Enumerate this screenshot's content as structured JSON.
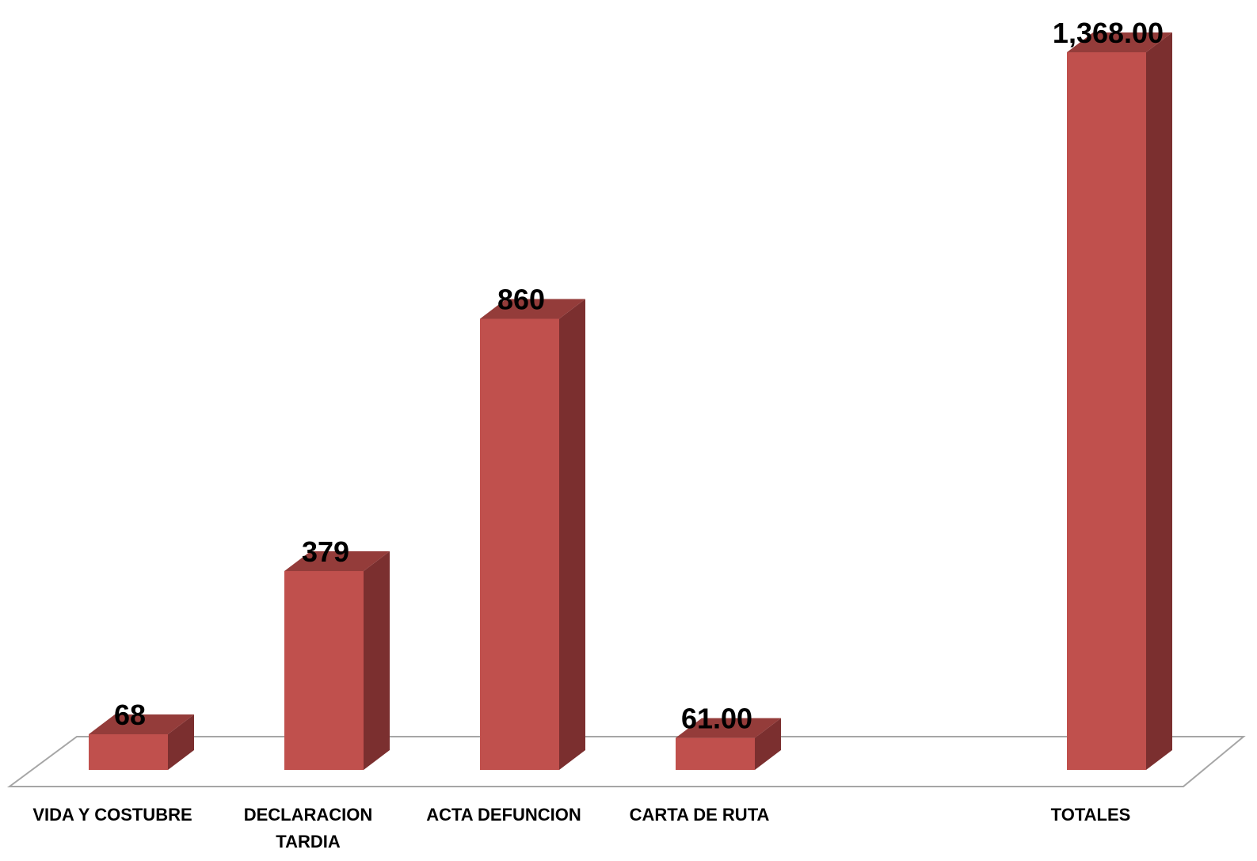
{
  "chart_data": {
    "type": "bar",
    "style": "3d-column",
    "title": "",
    "xlabel": "",
    "ylabel": "",
    "ylim": [
      0,
      1368
    ],
    "grid": false,
    "legend": "none",
    "categories": [
      [
        "VIDA Y COSTUBRE"
      ],
      [
        "DECLARACION",
        "TARDIA"
      ],
      [
        "ACTA DEFUNCION"
      ],
      [
        "CARTA DE RUTA"
      ],
      [],
      [
        "TOTALES"
      ]
    ],
    "values": [
      68,
      379,
      860,
      61,
      null,
      1368
    ],
    "value_labels": [
      "68",
      "379",
      "860",
      "61.00",
      "",
      "1,368.00"
    ],
    "colors": {
      "front": "#C0504D",
      "side": "#7B2F2F",
      "top": "#943C3A",
      "floor_stroke": "#A6A6A6"
    }
  }
}
